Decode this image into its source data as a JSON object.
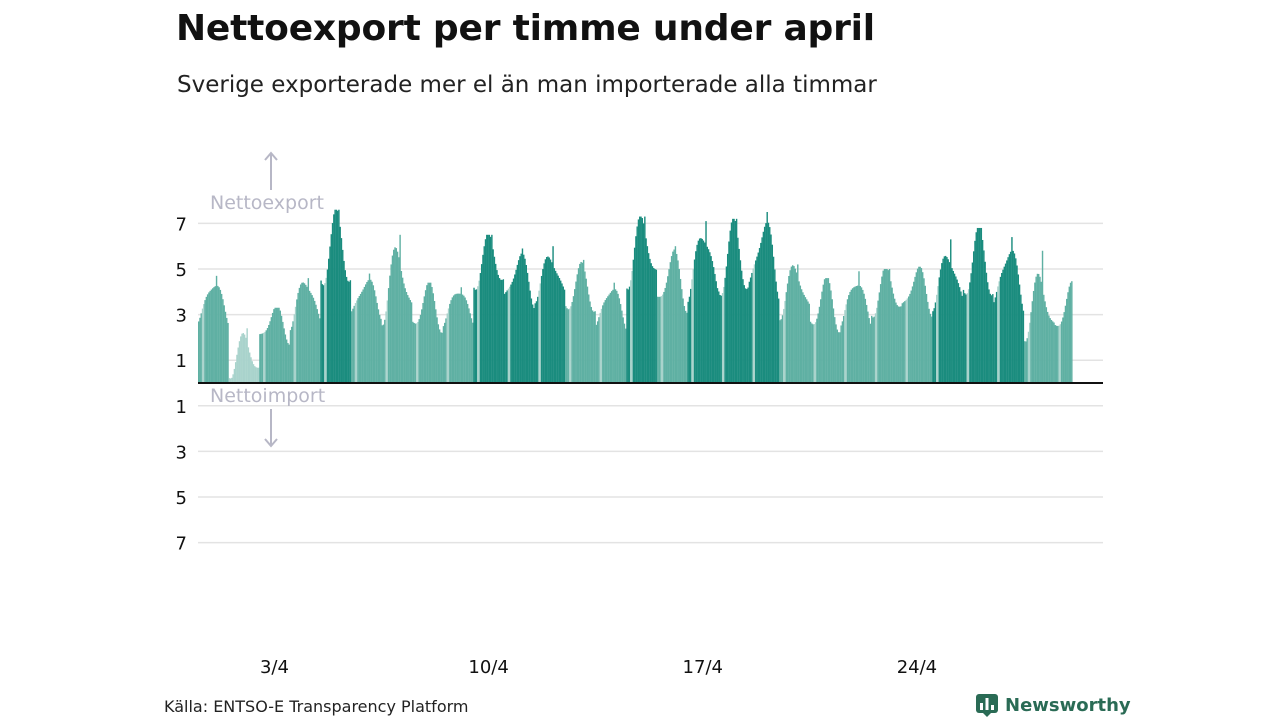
{
  "title": "Nettoexport per timme under april",
  "subtitle": "Sverige exporterade mer el än man importerade alla timmar",
  "source": "Källa: ENTSO-E Transparency Platform",
  "brand": {
    "name": "Newsworthy"
  },
  "colors": {
    "bar_dark": "#1a8c7e",
    "bar_mid": "#5fb0a3",
    "bar_light": "#a9d3cc",
    "zero_line": "#111111",
    "grid": "#e3e3e3",
    "annotation": "#b7b7c6",
    "brand": "#2a6b55"
  },
  "chart_data": {
    "type": "bar",
    "orientation": "vertical",
    "x_unit": "hour",
    "period": "april",
    "ylim": [
      -7,
      7
    ],
    "y_ticks": [
      {
        "value": 7,
        "label": "7"
      },
      {
        "value": 5,
        "label": "5"
      },
      {
        "value": 3,
        "label": "3"
      },
      {
        "value": 1,
        "label": "1"
      },
      {
        "value": -1,
        "label": "1"
      },
      {
        "value": -3,
        "label": "3"
      },
      {
        "value": -5,
        "label": "5"
      },
      {
        "value": -7,
        "label": "7"
      }
    ],
    "x_ticks": [
      {
        "day": 3,
        "label": "3/4"
      },
      {
        "day": 10,
        "label": "10/4"
      },
      {
        "day": 17,
        "label": "17/4"
      },
      {
        "day": 24,
        "label": "24/4"
      }
    ],
    "annotations": {
      "export": "Nettoexport",
      "import": "Nettoimport"
    },
    "grid": true,
    "legend": "none",
    "days": [
      {
        "day": 1,
        "mean": 3.6,
        "amp": 0.9,
        "peak": 4.7,
        "shade": "mid"
      },
      {
        "day": 2,
        "mean": 1.2,
        "amp": 0.8,
        "peak": 2.4,
        "shade": "light"
      },
      {
        "day": 3,
        "mean": 2.6,
        "amp": 0.7,
        "peak": 3.3,
        "shade": "mid"
      },
      {
        "day": 4,
        "mean": 3.6,
        "amp": 1.0,
        "peak": 4.6,
        "shade": "mid"
      },
      {
        "day": 5,
        "mean": 5.8,
        "amp": 1.4,
        "peak": 7.6,
        "shade": "dark"
      },
      {
        "day": 6,
        "mean": 3.8,
        "amp": 0.8,
        "peak": 4.8,
        "shade": "mid"
      },
      {
        "day": 7,
        "mean": 4.4,
        "amp": 1.4,
        "peak": 6.5,
        "shade": "mid"
      },
      {
        "day": 8,
        "mean": 3.3,
        "amp": 0.9,
        "peak": 4.4,
        "shade": "mid"
      },
      {
        "day": 9,
        "mean": 3.4,
        "amp": 0.8,
        "peak": 4.2,
        "shade": "mid"
      },
      {
        "day": 10,
        "mean": 5.3,
        "amp": 1.0,
        "peak": 6.5,
        "shade": "dark"
      },
      {
        "day": 11,
        "mean": 4.6,
        "amp": 1.0,
        "peak": 5.9,
        "shade": "dark"
      },
      {
        "day": 12,
        "mean": 4.7,
        "amp": 0.9,
        "peak": 6.0,
        "shade": "dark"
      },
      {
        "day": 13,
        "mean": 4.1,
        "amp": 0.9,
        "peak": 5.4,
        "shade": "mid"
      },
      {
        "day": 14,
        "mean": 3.4,
        "amp": 0.9,
        "peak": 4.4,
        "shade": "mid"
      },
      {
        "day": 15,
        "mean": 5.8,
        "amp": 1.3,
        "peak": 7.3,
        "shade": "dark"
      },
      {
        "day": 16,
        "mean": 4.5,
        "amp": 1.1,
        "peak": 6.0,
        "shade": "mid"
      },
      {
        "day": 17,
        "mean": 5.3,
        "amp": 1.4,
        "peak": 7.1,
        "shade": "dark"
      },
      {
        "day": 18,
        "mean": 5.4,
        "amp": 1.4,
        "peak": 7.2,
        "shade": "dark"
      },
      {
        "day": 19,
        "mean": 5.6,
        "amp": 1.5,
        "peak": 7.5,
        "shade": "dark"
      },
      {
        "day": 20,
        "mean": 4.1,
        "amp": 1.0,
        "peak": 5.2,
        "shade": "mid"
      },
      {
        "day": 21,
        "mean": 3.4,
        "amp": 1.0,
        "peak": 4.6,
        "shade": "mid"
      },
      {
        "day": 22,
        "mean": 3.6,
        "amp": 1.0,
        "peak": 4.9,
        "shade": "mid"
      },
      {
        "day": 23,
        "mean": 4.0,
        "amp": 0.9,
        "peak": 5.0,
        "shade": "mid"
      },
      {
        "day": 24,
        "mean": 4.1,
        "amp": 0.9,
        "peak": 5.1,
        "shade": "mid"
      },
      {
        "day": 25,
        "mean": 4.6,
        "amp": 1.1,
        "peak": 6.3,
        "shade": "dark"
      },
      {
        "day": 26,
        "mean": 5.2,
        "amp": 1.3,
        "peak": 6.8,
        "shade": "dark"
      },
      {
        "day": 27,
        "mean": 4.7,
        "amp": 1.3,
        "peak": 6.4,
        "shade": "dark"
      },
      {
        "day": 28,
        "mean": 3.4,
        "amp": 1.2,
        "peak": 5.8,
        "shade": "mid"
      },
      {
        "day": 29,
        "mean": 3.2,
        "amp": 1.0,
        "peak": 4.6,
        "shade": "mid"
      }
    ]
  }
}
